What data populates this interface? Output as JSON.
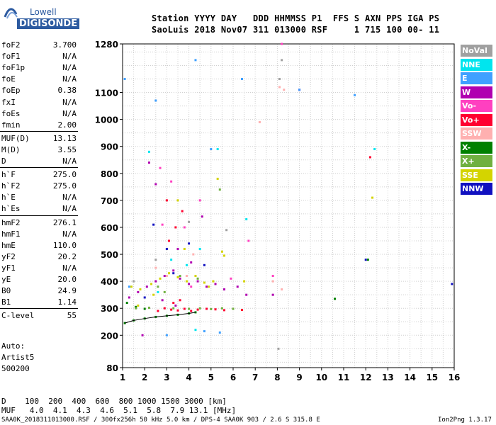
{
  "logo": {
    "top": "Lowell",
    "bottom": "DIGISONDE"
  },
  "header": {
    "line1": "Station YYYY DAY   DDD HHMMSS P1  FFS S AXN PPS IGA PS",
    "line2": "SaoLuis 2018 Nov07 311 013000 RSF     1 715 100 00- 11"
  },
  "params": [
    {
      "name": "foF2",
      "value": "3.700"
    },
    {
      "name": "foF1",
      "value": "N/A"
    },
    {
      "name": "foF1p",
      "value": "N/A"
    },
    {
      "name": "foE",
      "value": "N/A"
    },
    {
      "name": "foEp",
      "value": "0.38"
    },
    {
      "name": "fxI",
      "value": "N/A"
    },
    {
      "name": "foEs",
      "value": "N/A"
    },
    {
      "name": "fmin",
      "value": "2.00"
    },
    {
      "name": "MUF(D)",
      "value": "13.13"
    },
    {
      "name": "M(D)",
      "value": "3.55"
    },
    {
      "name": "D",
      "value": "N/A"
    },
    {
      "name": "h`F",
      "value": "275.0"
    },
    {
      "name": "h`F2",
      "value": "275.0"
    },
    {
      "name": "h`E",
      "value": "N/A"
    },
    {
      "name": "h`Es",
      "value": "N/A"
    },
    {
      "name": "hmF2",
      "value": "276.1"
    },
    {
      "name": "hmF1",
      "value": "N/A"
    },
    {
      "name": "hmE",
      "value": "110.0"
    },
    {
      "name": "yF2",
      "value": "20.2"
    },
    {
      "name": "yF1",
      "value": "N/A"
    },
    {
      "name": "yE",
      "value": "20.0"
    },
    {
      "name": "B0",
      "value": "24.9"
    },
    {
      "name": "B1",
      "value": "1.14"
    },
    {
      "name": "C-level",
      "value": "55"
    }
  ],
  "auto": {
    "line1": "Auto:",
    "line2": "Artist5",
    "line3": "500200"
  },
  "legend": [
    {
      "label": "NoVal",
      "color": "#a0a0a0"
    },
    {
      "label": "NNE",
      "color": "#00e5ee"
    },
    {
      "label": "E",
      "color": "#3fa0ff"
    },
    {
      "label": "W",
      "color": "#b000b0"
    },
    {
      "label": "Vo-",
      "color": "#ff40c0"
    },
    {
      "label": "Vo+",
      "color": "#ff0030"
    },
    {
      "label": "SSW",
      "color": "#ffb0b0"
    },
    {
      "label": "X-",
      "color": "#008000"
    },
    {
      "label": "X+",
      "color": "#70b040"
    },
    {
      "label": "SSE",
      "color": "#d4d400"
    },
    {
      "label": "NNW",
      "color": "#1010c0"
    }
  ],
  "mufTable": {
    "line1": "D    100  200  400  600  800 1000 1500 3000 [km]",
    "line2": "MUF   4.0  4.1  4.3  4.6  5.1  5.8  7.9 13.1 [MHz]"
  },
  "footer": {
    "left": "SAA0K_2018311013000.RSF / 300fx256h 50 kHz 5.0 km / DPS-4 SAA0K 903 / 2.6 S 315.8 E",
    "right": "Ion2Png 1.3.17"
  },
  "chart_data": {
    "type": "scatter",
    "x_ticks": [
      1,
      2,
      3,
      4,
      5,
      6,
      7,
      8,
      9,
      10,
      11,
      12,
      13,
      14,
      15,
      16
    ],
    "y_ticks": [
      80,
      200,
      300,
      400,
      500,
      600,
      700,
      800,
      900,
      1000,
      1100,
      1280
    ],
    "xlim": [
      1,
      16
    ],
    "ylim": [
      80,
      1280
    ],
    "grid": true,
    "series": [
      {
        "name": "X-",
        "points": [
          [
            1.1,
            245
          ],
          [
            1.5,
            255
          ],
          [
            2,
            262
          ],
          [
            2.5,
            268
          ],
          [
            3,
            272
          ],
          [
            3.5,
            276
          ],
          [
            4,
            281
          ],
          [
            4.3,
            285
          ],
          [
            1.2,
            320
          ],
          [
            1.6,
            305
          ],
          [
            2,
            298
          ],
          [
            10.6,
            335
          ],
          [
            12.1,
            480
          ]
        ]
      },
      {
        "name": "Vo+",
        "points": [
          [
            2.6,
            290
          ],
          [
            2.9,
            300
          ],
          [
            3.2,
            295
          ],
          [
            3.5,
            292
          ],
          [
            3.8,
            298
          ],
          [
            4.1,
            290
          ],
          [
            4.4,
            295
          ],
          [
            4.8,
            298
          ],
          [
            5.2,
            296
          ],
          [
            5.6,
            293
          ],
          [
            6,
            298
          ],
          [
            6.4,
            294
          ],
          [
            3.3,
            320
          ],
          [
            3.6,
            330
          ],
          [
            3.1,
            550
          ],
          [
            3.4,
            600
          ],
          [
            12.2,
            860
          ],
          [
            3.0,
            700
          ],
          [
            3.7,
            660
          ]
        ]
      },
      {
        "name": "W",
        "points": [
          [
            1.3,
            340
          ],
          [
            1.7,
            360
          ],
          [
            2.1,
            380
          ],
          [
            2.5,
            400
          ],
          [
            2.9,
            420
          ],
          [
            3.3,
            440
          ],
          [
            3.6,
            410
          ],
          [
            4,
            390
          ],
          [
            4.4,
            400
          ],
          [
            4.8,
            380
          ],
          [
            5.2,
            390
          ],
          [
            5.6,
            370
          ],
          [
            6.2,
            380
          ],
          [
            6.6,
            350
          ],
          [
            2.2,
            840
          ],
          [
            2.5,
            760
          ],
          [
            3.5,
            520
          ],
          [
            4.1,
            470
          ],
          [
            4.6,
            640
          ],
          [
            1.9,
            200
          ],
          [
            2.8,
            330
          ],
          [
            3.4,
            310
          ],
          [
            9,
            1110
          ],
          [
            7.8,
            350
          ]
        ]
      },
      {
        "name": "SSE",
        "points": [
          [
            1.4,
            380
          ],
          [
            1.8,
            370
          ],
          [
            2.3,
            390
          ],
          [
            2.7,
            410
          ],
          [
            3.1,
            430
          ],
          [
            3.5,
            415
          ],
          [
            3.9,
            400
          ],
          [
            4.3,
            420
          ],
          [
            4.7,
            395
          ],
          [
            5.1,
            400
          ],
          [
            5.5,
            510
          ],
          [
            5.6,
            495
          ],
          [
            3.5,
            700
          ],
          [
            3.8,
            520
          ],
          [
            2.4,
            350
          ],
          [
            6.5,
            400
          ],
          [
            5.3,
            780
          ],
          [
            4.9,
            380
          ],
          [
            12.3,
            710
          ],
          [
            1.7,
            310
          ]
        ]
      },
      {
        "name": "X+",
        "points": [
          [
            1.6,
            300
          ],
          [
            2.2,
            302
          ],
          [
            3.3,
            300
          ],
          [
            4,
            298
          ],
          [
            4.5,
            300
          ],
          [
            5,
            297
          ],
          [
            5.5,
            300
          ],
          [
            6,
            298
          ],
          [
            3.6,
            420
          ],
          [
            4.4,
            410
          ],
          [
            2.6,
            380
          ],
          [
            2.9,
            360
          ],
          [
            5.4,
            740
          ]
        ]
      },
      {
        "name": "NNE",
        "points": [
          [
            2.2,
            880
          ],
          [
            2.6,
            360
          ],
          [
            3.2,
            480
          ],
          [
            3.9,
            460
          ],
          [
            4.5,
            520
          ],
          [
            12.4,
            890
          ],
          [
            5.3,
            890
          ],
          [
            6.6,
            630
          ],
          [
            4.3,
            220
          ]
        ]
      },
      {
        "name": "E",
        "points": [
          [
            1.1,
            1150
          ],
          [
            2.5,
            1070
          ],
          [
            4.7,
            215
          ],
          [
            5.0,
            890
          ],
          [
            3.0,
            200
          ],
          [
            4.3,
            1220
          ],
          [
            6.4,
            1150
          ],
          [
            9.0,
            1110
          ],
          [
            11.5,
            1090
          ],
          [
            5.4,
            210
          ],
          [
            1.3,
            380
          ]
        ]
      },
      {
        "name": "Vo-",
        "points": [
          [
            2.7,
            820
          ],
          [
            3.2,
            770
          ],
          [
            4.5,
            700
          ],
          [
            3.8,
            600
          ],
          [
            2.8,
            610
          ],
          [
            4.1,
            380
          ],
          [
            5.9,
            410
          ],
          [
            6.7,
            550
          ],
          [
            7.8,
            420
          ],
          [
            8.2,
            1280
          ]
        ]
      },
      {
        "name": "NNW",
        "points": [
          [
            2.4,
            610
          ],
          [
            3.0,
            520
          ],
          [
            4.0,
            540
          ],
          [
            4.7,
            460
          ],
          [
            12.0,
            480
          ],
          [
            15.9,
            390
          ],
          [
            3.3,
            430
          ],
          [
            2.0,
            340
          ]
        ]
      },
      {
        "name": "SSW",
        "points": [
          [
            2.5,
            450
          ],
          [
            3.0,
            420
          ],
          [
            3.9,
            420
          ],
          [
            4.2,
            500
          ],
          [
            7.2,
            990
          ],
          [
            7.8,
            400
          ],
          [
            8.3,
            1110
          ],
          [
            8.1,
            1120
          ],
          [
            8.2,
            370
          ]
        ]
      },
      {
        "name": "NoVal",
        "points": [
          [
            1.5,
            400
          ],
          [
            2.5,
            480
          ],
          [
            4,
            620
          ],
          [
            5.7,
            590
          ],
          [
            8.1,
            1150
          ],
          [
            8.2,
            1220
          ],
          [
            8.05,
            150
          ]
        ]
      }
    ]
  }
}
